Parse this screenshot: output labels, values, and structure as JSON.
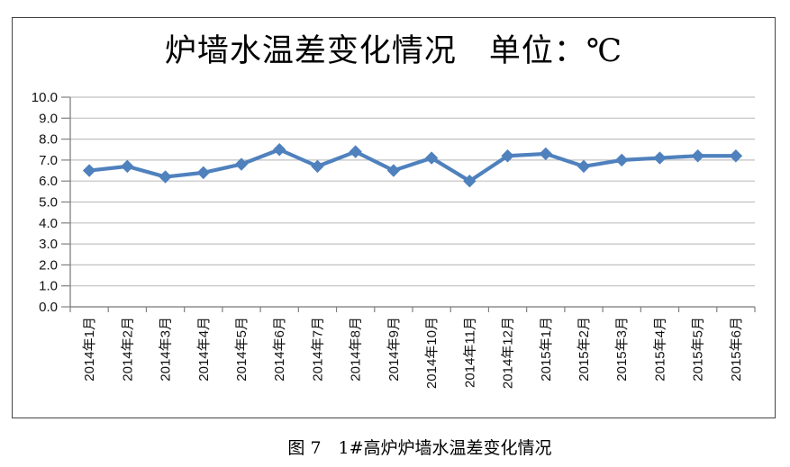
{
  "chart_data": {
    "type": "line",
    "title": "炉墙水温差变化情况　单位：℃",
    "categories": [
      "2014年1月",
      "2014年2月",
      "2014年3月",
      "2014年4月",
      "2014年5月",
      "2014年6月",
      "2014年7月",
      "2014年8月",
      "2014年9月",
      "2014年10月",
      "2014年11月",
      "2014年12月",
      "2015年1月",
      "2015年2月",
      "2015年3月",
      "2015年4月",
      "2015年5月",
      "2015年6月"
    ],
    "values": [
      6.5,
      6.7,
      6.2,
      6.4,
      6.8,
      7.5,
      6.7,
      7.4,
      6.5,
      7.1,
      6.0,
      7.2,
      7.3,
      6.7,
      7.0,
      7.1,
      7.2,
      7.2
    ],
    "xlabel": "",
    "ylabel": "",
    "ylim": [
      0,
      10
    ],
    "ytick_step": 1,
    "ytick_decimals": 1,
    "grid": "horizontal",
    "legend": "none",
    "x_label_rotation": -90,
    "line_color": "#4F81BD",
    "grid_color": "#C0C0C0",
    "axis_color": "#808080",
    "label_color": "#111111"
  },
  "caption": "图 7　1#高炉炉墙水温差变化情况"
}
